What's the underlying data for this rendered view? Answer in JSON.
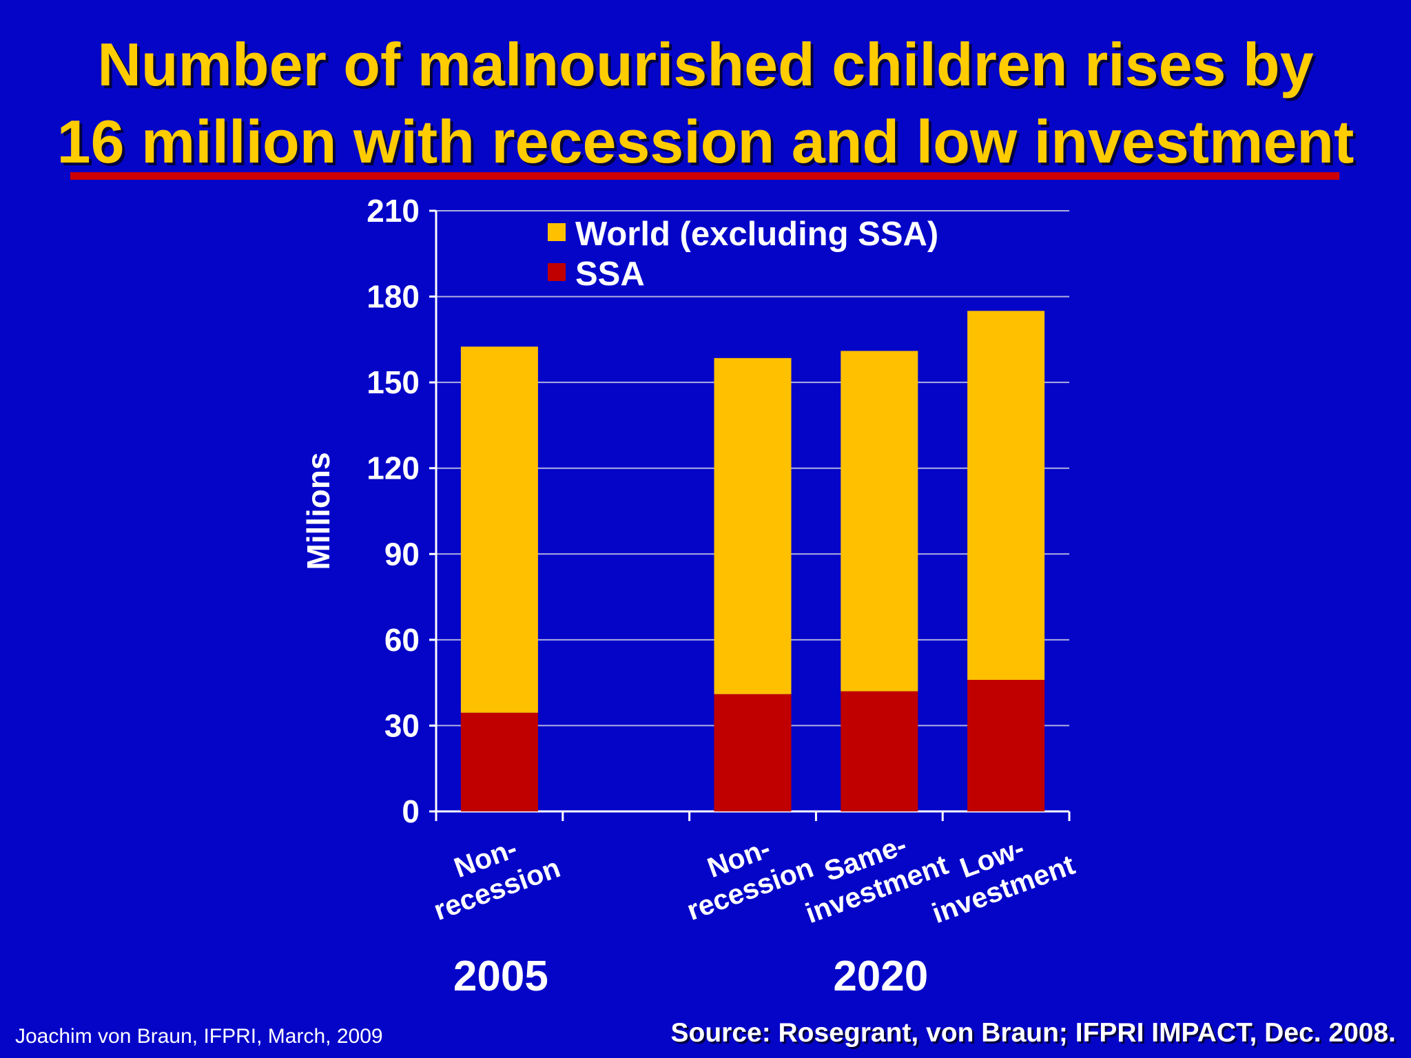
{
  "slide": {
    "title_line1": "Number of malnourished children rises by",
    "title_line2": "16 million with recession and low investment",
    "footer_left": "Joachim von Braun, IFPRI, March, 2009",
    "footer_right": "Source: Rosegrant, von Braun; IFPRI IMPACT, Dec. 2008."
  },
  "colors": {
    "background": "#0505c8",
    "title": "#ffcc00",
    "rule": "#cc0000",
    "world": "#ffc000",
    "ssa": "#c00000"
  },
  "chart_data": {
    "type": "bar",
    "stacked": true,
    "ylabel": "Millions",
    "ylim": [
      0,
      210
    ],
    "yticks": [
      0,
      30,
      60,
      90,
      120,
      150,
      180,
      210
    ],
    "grid": true,
    "legend_position": "top",
    "categories": [
      [
        "Non-",
        "recession"
      ],
      [],
      [
        "Non-",
        "recession"
      ],
      [
        "Same-",
        "investment"
      ],
      [
        "Low-",
        "investment"
      ]
    ],
    "groups": [
      {
        "label": "2005",
        "category_indices": [
          0
        ]
      },
      {
        "label": "2020",
        "category_indices": [
          2,
          3,
          4
        ]
      }
    ],
    "series": [
      {
        "name": "SSA",
        "color": "#c00000",
        "values": [
          34.5,
          null,
          41,
          42,
          46
        ]
      },
      {
        "name": "World (excluding SSA)",
        "color": "#ffc000",
        "values": [
          128,
          null,
          117.5,
          119,
          129
        ]
      }
    ],
    "legend_order": [
      "World (excluding SSA)",
      "SSA"
    ]
  }
}
